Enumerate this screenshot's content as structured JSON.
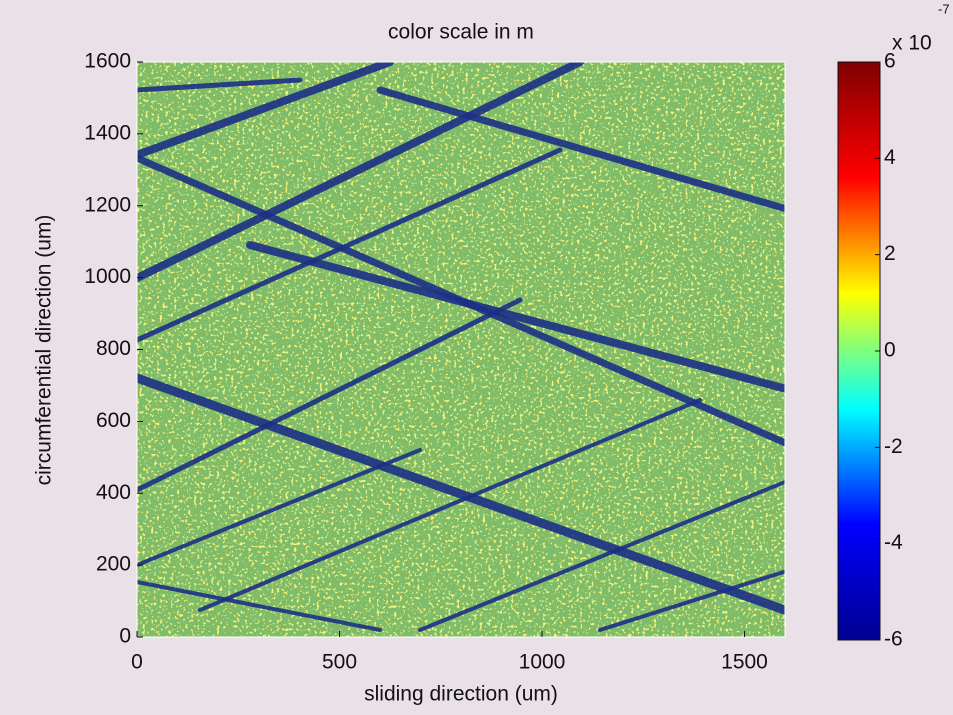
{
  "chart_data": {
    "type": "heatmap",
    "title": "color scale in m",
    "xlabel": "sliding direction (um)",
    "ylabel": "circumferential direction (um)",
    "xlim": [
      0,
      1600
    ],
    "xticks": [
      0,
      500,
      1000,
      1500
    ],
    "ylim": [
      0,
      1600
    ],
    "yticks": [
      0,
      200,
      400,
      600,
      800,
      1000,
      1200,
      1400,
      1600
    ],
    "colormap": "jet",
    "clim": [
      -6,
      6
    ],
    "cticks": [
      -6,
      -4,
      -2,
      0,
      2,
      4,
      6
    ],
    "colorbar_label": "x 10",
    "colorbar_exponent": "-7"
  }
}
